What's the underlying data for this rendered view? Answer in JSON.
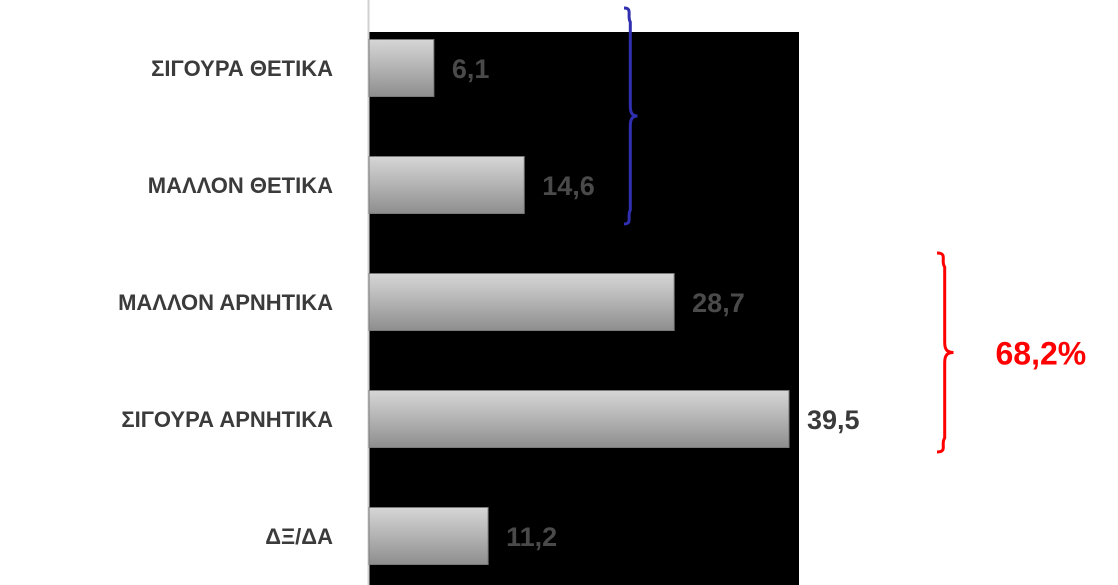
{
  "chart_data": {
    "type": "bar",
    "orientation": "horizontal",
    "categories": [
      "ΣΙΓΟΥΡΑ ΘΕΤΙΚΑ",
      "ΜΑΛΛΟΝ ΘΕΤΙΚΑ",
      "ΜΑΛΛΟΝ ΑΡΝΗΤΙΚΑ",
      "ΣΙΓΟΥΡΑ ΑΡΝΗΤΙΚΑ",
      "ΔΞ/ΔΑ"
    ],
    "values": [
      6.1,
      14.6,
      28.7,
      39.5,
      11.2
    ],
    "value_labels": [
      "6,1",
      "14,6",
      "28,7",
      "39,5",
      "11,2"
    ],
    "xlim": [
      0,
      41
    ],
    "grid": false,
    "legend": "none",
    "annotations": [
      {
        "type": "brace",
        "groups": [
          "ΣΙΓΟΥΡΑ ΘΕΤΙΚΑ",
          "ΜΑΛΛΟΝ ΘΕΤΙΚΑ"
        ],
        "label": "",
        "color": "#2f2fb0"
      },
      {
        "type": "brace",
        "groups": [
          "ΜΑΛΛΟΝ ΑΡΝΗΤΙΚΑ",
          "ΣΙΓΟΥΡΑ ΑΡΝΗΤΙΚΑ"
        ],
        "label": "68,2%",
        "color": "#ff0000"
      }
    ],
    "colors": {
      "plot_background": "#000000",
      "bar": "#b4b4b4",
      "value_label_on_dark": "#4a4a4a",
      "value_label_on_light": "#3a3a3a",
      "category_label": "#3b3b3b"
    }
  }
}
